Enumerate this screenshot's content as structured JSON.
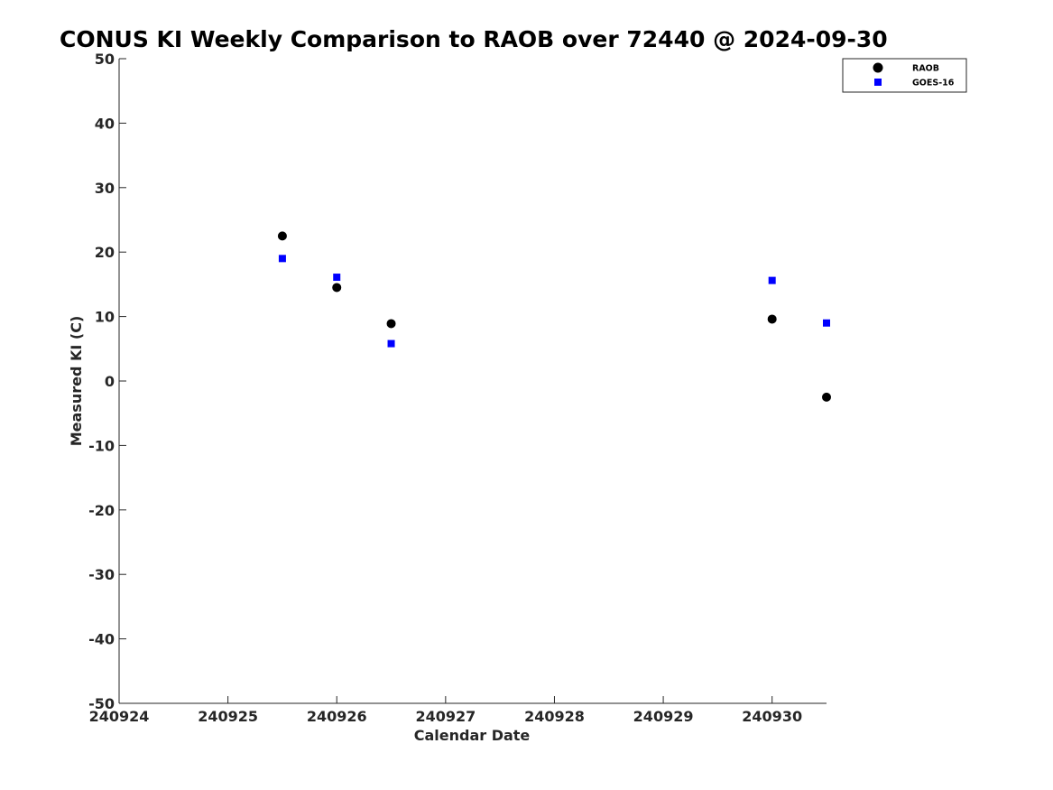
{
  "chart_data": {
    "type": "scatter",
    "title": "CONUS KI Weekly Comparison to RAOB over 72440 @ 2024-09-30",
    "xlabel": "Calendar Date",
    "ylabel": "Measured KI (C)",
    "xlim": [
      "2024-09-24",
      "2024-09-30 12:00"
    ],
    "ylim": [
      -50,
      50
    ],
    "x_ticks": [
      {
        "label": "240924",
        "value": "2024-09-24"
      },
      {
        "label": "240925",
        "value": "2024-09-25"
      },
      {
        "label": "240926",
        "value": "2024-09-26"
      },
      {
        "label": "240927",
        "value": "2024-09-27"
      },
      {
        "label": "240928",
        "value": "2024-09-28"
      },
      {
        "label": "240929",
        "value": "2024-09-29"
      },
      {
        "label": "240930",
        "value": "2024-09-30"
      }
    ],
    "y_ticks": [
      50,
      40,
      30,
      20,
      10,
      0,
      -10,
      -20,
      -30,
      -40,
      -50
    ],
    "grid": false,
    "legend_position": "top-right",
    "series": [
      {
        "name": "RAOB",
        "marker": "circle",
        "color": "#000000",
        "points": [
          {
            "x": "2024-09-25 12:00",
            "y": 22.5
          },
          {
            "x": "2024-09-26 00:00",
            "y": 14.5
          },
          {
            "x": "2024-09-26 12:00",
            "y": 8.9
          },
          {
            "x": "2024-09-30 00:00",
            "y": 9.6
          },
          {
            "x": "2024-09-30 12:00",
            "y": -2.5
          }
        ]
      },
      {
        "name": "GOES-16",
        "marker": "square",
        "color": "#0000ff",
        "points": [
          {
            "x": "2024-09-25 12:00",
            "y": 19.0
          },
          {
            "x": "2024-09-26 00:00",
            "y": 16.1
          },
          {
            "x": "2024-09-26 12:00",
            "y": 5.8
          },
          {
            "x": "2024-09-30 00:00",
            "y": 15.6
          },
          {
            "x": "2024-09-30 12:00",
            "y": 9.0
          }
        ]
      }
    ]
  }
}
